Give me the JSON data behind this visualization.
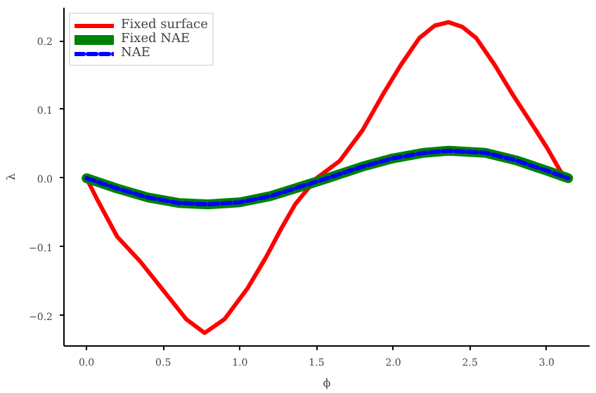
{
  "chart_data": {
    "type": "line",
    "xlabel": "ϕ",
    "ylabel": "λ",
    "xlim": [
      -0.147,
      3.28
    ],
    "ylim": [
      -0.244,
      0.248
    ],
    "xticks": [
      {
        "value": 0,
        "label": "0.0"
      },
      0.5,
      {
        "value": 1,
        "label": "1.0"
      },
      1.5,
      {
        "value": 2,
        "label": "2.0"
      },
      2.5,
      {
        "value": 3,
        "label": "3.0"
      }
    ],
    "yticks": [
      -0.2,
      -0.1,
      {
        "value": 0,
        "label": "0.0"
      },
      0.1,
      0.2
    ],
    "grid": false,
    "legend": "top left",
    "marker": "none",
    "series": [
      {
        "name": "Fixed surface",
        "color": "#ff0000",
        "line_style": "solid",
        "x": [
          0,
          0.07,
          0.2,
          0.35,
          0.5,
          0.65,
          0.77,
          0.9,
          1.05,
          1.17,
          1.27,
          1.36,
          1.5,
          1.65,
          1.8,
          1.93,
          2.05,
          2.17,
          2.27,
          2.36,
          2.45,
          2.54,
          2.66,
          2.78,
          2.9,
          3.0,
          3.1,
          3.14
        ],
        "values": [
          0,
          -0.031,
          -0.085,
          -0.121,
          -0.163,
          -0.205,
          -0.225,
          -0.205,
          -0.16,
          -0.115,
          -0.073,
          -0.038,
          0.0,
          0.025,
          0.07,
          0.121,
          0.165,
          0.204,
          0.222,
          0.227,
          0.22,
          0.204,
          0.165,
          0.121,
          0.08,
          0.045,
          0.006,
          0
        ]
      },
      {
        "name": "Fixed NAE",
        "color": "#008000",
        "line_style": "solid",
        "x": [
          0,
          0.2,
          0.4,
          0.6,
          0.79,
          1.0,
          1.2,
          1.4,
          1.57,
          1.8,
          2.0,
          2.2,
          2.36,
          2.6,
          2.8,
          3.0,
          3.14
        ],
        "values": [
          0,
          -0.015,
          -0.028,
          -0.036,
          -0.038,
          -0.035,
          -0.026,
          -0.012,
          0,
          0.017,
          0.029,
          0.037,
          0.04,
          0.037,
          0.026,
          0.011,
          0
        ]
      },
      {
        "name": "NAE",
        "color": "#0000ff",
        "line_style": "dashed",
        "x": [
          0,
          0.2,
          0.4,
          0.6,
          0.79,
          1.0,
          1.2,
          1.4,
          1.57,
          1.8,
          2.0,
          2.2,
          2.36,
          2.6,
          2.8,
          3.0,
          3.14
        ],
        "values": [
          0,
          -0.015,
          -0.028,
          -0.036,
          -0.038,
          -0.035,
          -0.026,
          -0.012,
          0,
          0.017,
          0.029,
          0.037,
          0.04,
          0.037,
          0.026,
          0.011,
          0
        ]
      }
    ]
  }
}
